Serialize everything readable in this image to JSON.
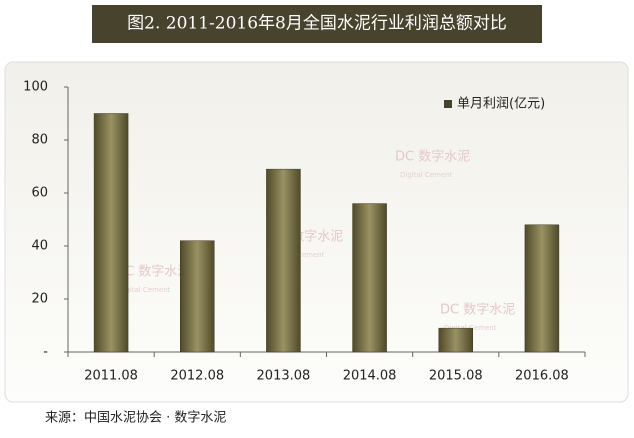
{
  "chart_data": {
    "type": "bar",
    "title": "图2.  2011-2016年8月全国水泥行业利润总额对比",
    "categories": [
      "2011.08",
      "2012.08",
      "2013.08",
      "2014.08",
      "2015.08",
      "2016.08"
    ],
    "series": [
      {
        "name": "单月利润(亿元)",
        "color": "#48432d",
        "values": [
          90,
          42,
          69,
          56,
          9,
          48
        ]
      }
    ],
    "ylim": [
      0,
      100
    ],
    "yticks": [
      {
        "value": 0,
        "label": "-"
      },
      20,
      40,
      60,
      80,
      100
    ],
    "legend": "top-right",
    "watermark": "DC 数字水泥",
    "watermark_sub": "Digital Cement",
    "source": "来源：中国水泥协会 · 数字水泥"
  }
}
